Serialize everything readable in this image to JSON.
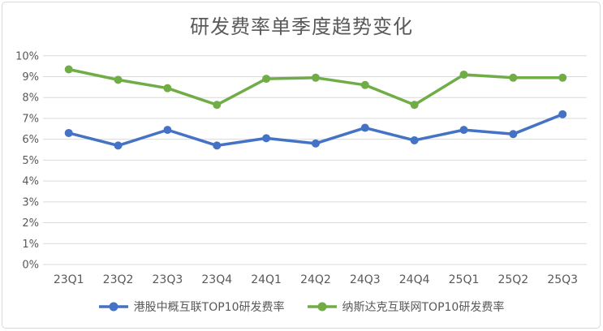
{
  "colors": {
    "series_blue": "#4472C4",
    "series_green": "#70AD47",
    "gridline": "#D9D9D9",
    "text": "#595959"
  },
  "chart_data": {
    "type": "line",
    "title": "研发费率单季度趋势变化",
    "xlabel": "",
    "ylabel": "",
    "categories": [
      "23Q1",
      "23Q2",
      "23Q3",
      "23Q4",
      "24Q1",
      "24Q2",
      "24Q3",
      "24Q4",
      "25Q1",
      "25Q2",
      "25Q3"
    ],
    "series": [
      {
        "name": "港股中概互联TOP10研发费率",
        "color": "#4472C4",
        "values": [
          6.3,
          5.7,
          6.45,
          5.7,
          6.05,
          5.8,
          6.55,
          5.95,
          6.45,
          6.25,
          7.2
        ]
      },
      {
        "name": "纳斯达克互联网TOP10研发费率",
        "color": "#70AD47",
        "values": [
          9.35,
          8.85,
          8.45,
          7.65,
          8.9,
          8.95,
          8.6,
          7.65,
          9.1,
          8.95,
          8.95
        ]
      }
    ],
    "ylim": [
      0,
      10
    ],
    "ytick_step": 1,
    "ytick_suffix": "%",
    "grid": "horizontal",
    "legend_position": "bottom",
    "marker": "circle"
  }
}
